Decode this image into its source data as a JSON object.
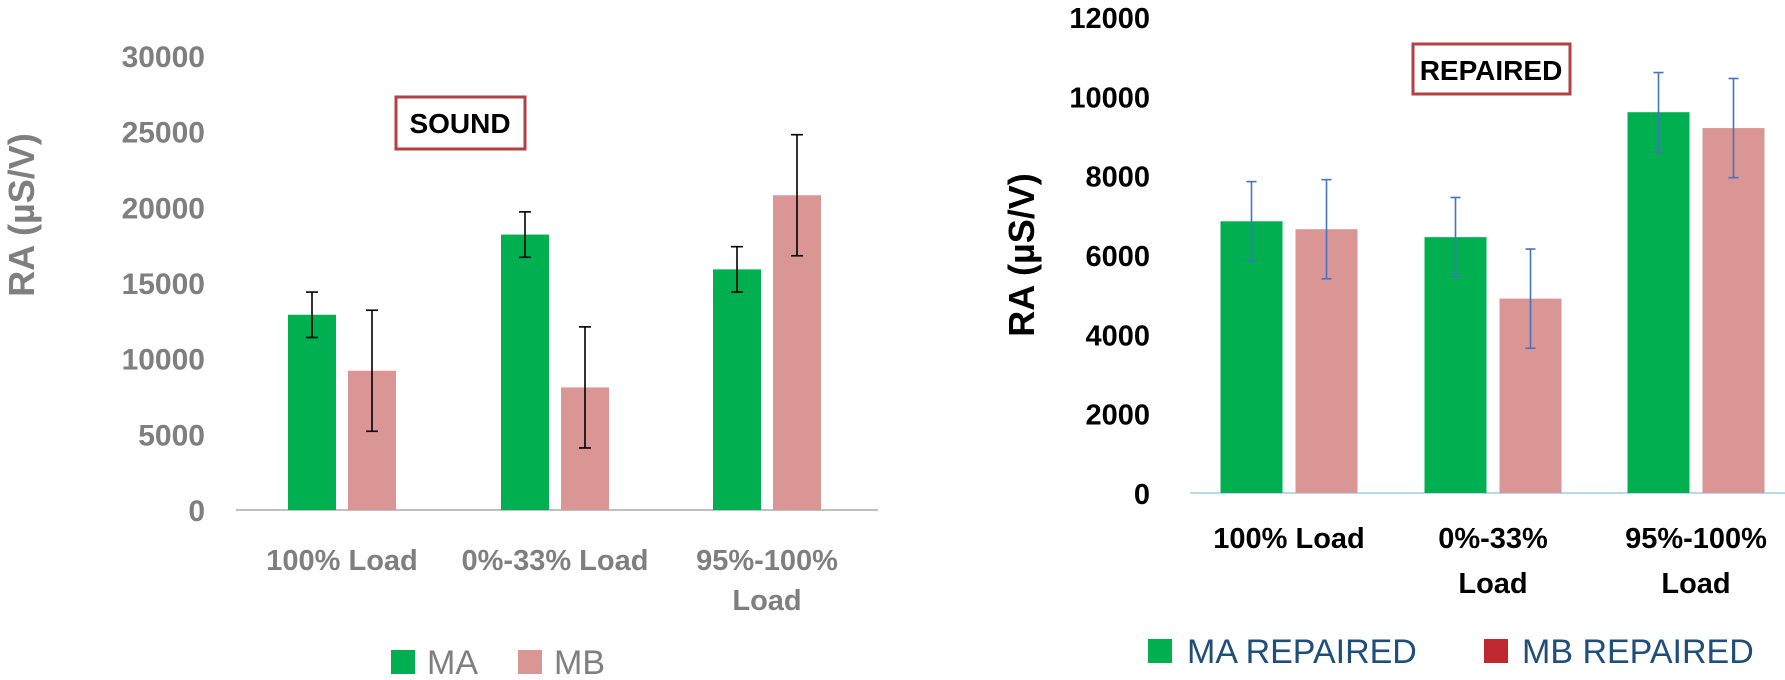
{
  "colors": {
    "ma": "#00b050",
    "mb": "#d99694",
    "mb_repaired_legend": "#c0292f",
    "annotation_border": "#b34044",
    "left_error": "#000000",
    "right_error": "#4472c4",
    "left_axis": "#bfbfbf",
    "right_axis": "#bdd7ee"
  },
  "chart_data": [
    {
      "type": "bar",
      "ylabel": "RA (µS/V)",
      "xlabel": "",
      "ylim": [
        0,
        30000
      ],
      "yticks": [
        "0",
        "5000",
        "10000",
        "15000",
        "20000",
        "25000",
        "30000"
      ],
      "grid": false,
      "annotation": "SOUND",
      "categories": [
        [
          "100% Load"
        ],
        [
          "0%-33% Load"
        ],
        [
          "95%-100%",
          "Load"
        ]
      ],
      "series": [
        {
          "name": "MA",
          "values": [
            12900,
            18200,
            15900
          ],
          "errors": [
            1500,
            1500,
            1500
          ]
        },
        {
          "name": "MB",
          "values": [
            9200,
            8100,
            20800
          ],
          "errors": [
            4000,
            4000,
            4000
          ]
        }
      ],
      "legend": "bottom"
    },
    {
      "type": "bar",
      "ylabel": "RA (µS/V)",
      "xlabel": "",
      "ylim": [
        0,
        12000
      ],
      "yticks": [
        "0",
        "2000",
        "4000",
        "6000",
        "8000",
        "10000",
        "12000"
      ],
      "grid": false,
      "annotation": "REPAIRED",
      "categories": [
        [
          "100% Load"
        ],
        [
          "0%-33%",
          "Load"
        ],
        [
          "95%-100%",
          "Load"
        ]
      ],
      "series": [
        {
          "name": "MA REPAIRED",
          "values": [
            6850,
            6450,
            9600
          ],
          "errors": [
            1000,
            1000,
            1000
          ]
        },
        {
          "name": "MB REPAIRED",
          "values": [
            6650,
            4900,
            9200
          ],
          "errors": [
            1250,
            1250,
            1250
          ]
        }
      ],
      "legend": "bottom"
    }
  ]
}
